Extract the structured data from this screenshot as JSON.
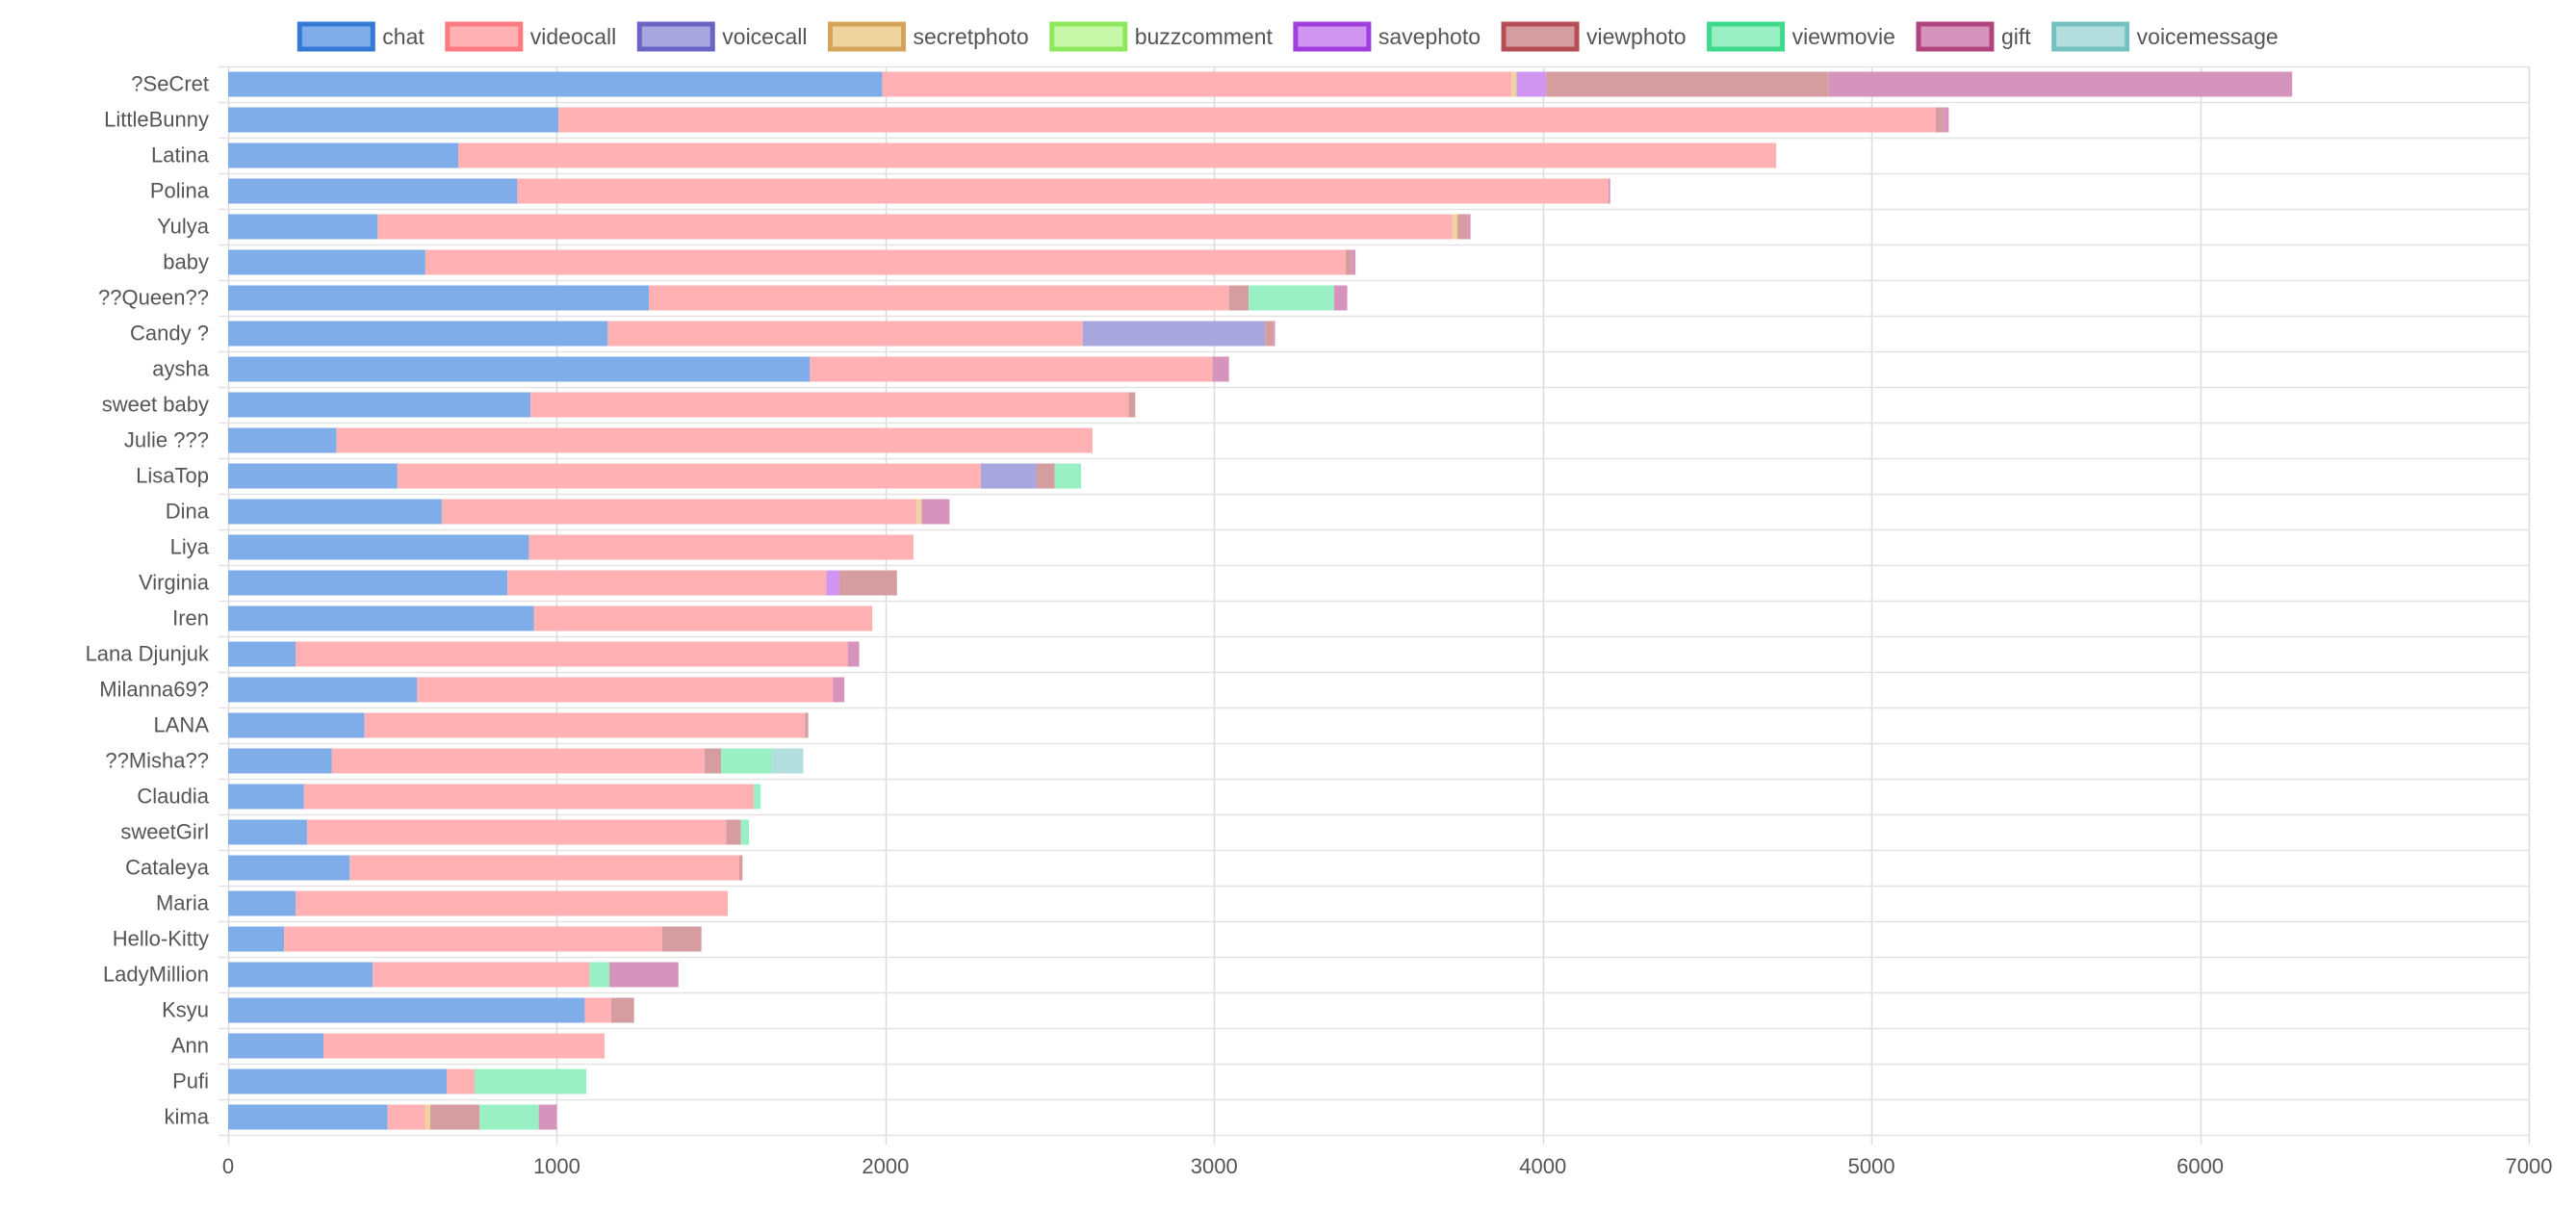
{
  "chart_data": {
    "type": "bar",
    "orientation": "horizontal",
    "stacked": true,
    "title": "",
    "xlabel": "",
    "ylabel": "",
    "xlim": [
      0,
      7000
    ],
    "x_ticks": [
      0,
      1000,
      2000,
      3000,
      4000,
      5000,
      6000,
      7000
    ],
    "grid": true,
    "legend_position": "top",
    "categories": [
      "?SeCret",
      "LittleBunny",
      "Latina",
      "Polina",
      "Yulya",
      "baby",
      "??Queen??",
      "Candy ?",
      "aysha",
      "sweet baby",
      "Julie ???",
      "LisaTop",
      "Dina",
      "Liya",
      "Virginia",
      "Iren",
      "Lana Djunjuk",
      "Milanna69?",
      "LANA",
      "??Misha??",
      "Claudia",
      "sweetGirl",
      "Cataleya",
      "Maria",
      "Hello-Kitty",
      "LadyMillion",
      "Ksyu",
      "Ann",
      "Pufi",
      "kima"
    ],
    "series": [
      {
        "name": "chat",
        "color": "#7fadea",
        "border": "#3579d6",
        "values": [
          1990,
          1005,
          700,
          880,
          455,
          600,
          1280,
          1155,
          1770,
          920,
          330,
          515,
          650,
          915,
          850,
          930,
          205,
          575,
          415,
          315,
          230,
          240,
          370,
          205,
          170,
          440,
          1085,
          290,
          665,
          485
        ]
      },
      {
        "name": "videocall",
        "color": "#ffb1b3",
        "border": "#ff7a80",
        "values": [
          1915,
          4190,
          4010,
          3320,
          3270,
          2800,
          1765,
          1445,
          1225,
          1820,
          2300,
          1775,
          1445,
          1170,
          970,
          1030,
          1680,
          1265,
          1340,
          1135,
          1370,
          1275,
          1185,
          1315,
          1150,
          660,
          80,
          855,
          85,
          115
        ]
      },
      {
        "name": "voicecall",
        "color": "#a7a6dd",
        "border": "#6a64c4",
        "values": [
          0,
          0,
          0,
          0,
          0,
          0,
          0,
          555,
          0,
          0,
          0,
          170,
          0,
          0,
          0,
          0,
          0,
          0,
          0,
          0,
          0,
          0,
          0,
          0,
          0,
          0,
          0,
          0,
          0,
          0
        ]
      },
      {
        "name": "secretphoto",
        "color": "#f0d49e",
        "border": "#d4a45a",
        "values": [
          15,
          0,
          0,
          0,
          15,
          0,
          0,
          0,
          0,
          0,
          0,
          0,
          15,
          0,
          0,
          0,
          0,
          0,
          0,
          0,
          0,
          0,
          0,
          0,
          0,
          0,
          0,
          0,
          0,
          15
        ]
      },
      {
        "name": "buzzcomment",
        "color": "#c9f7a9",
        "border": "#8ee85e",
        "values": [
          0,
          0,
          0,
          0,
          0,
          0,
          0,
          0,
          0,
          0,
          0,
          0,
          0,
          0,
          0,
          0,
          0,
          0,
          0,
          0,
          0,
          0,
          0,
          0,
          0,
          0,
          0,
          0,
          0,
          0
        ]
      },
      {
        "name": "savephoto",
        "color": "#cf95f0",
        "border": "#9f3fde",
        "values": [
          90,
          0,
          0,
          0,
          0,
          0,
          0,
          0,
          0,
          0,
          0,
          0,
          0,
          0,
          40,
          0,
          0,
          0,
          0,
          0,
          0,
          0,
          0,
          0,
          0,
          0,
          0,
          0,
          0,
          0
        ]
      },
      {
        "name": "viewphoto",
        "color": "#d59da0",
        "border": "#b34e55",
        "values": [
          860,
          25,
          0,
          0,
          30,
          20,
          60,
          25,
          0,
          20,
          0,
          55,
          0,
          0,
          175,
          0,
          0,
          0,
          10,
          50,
          0,
          45,
          10,
          0,
          120,
          0,
          70,
          0,
          0,
          150
        ]
      },
      {
        "name": "viewmovie",
        "color": "#99f0c4",
        "border": "#3fd98b",
        "values": [
          0,
          0,
          0,
          0,
          0,
          0,
          260,
          0,
          0,
          0,
          0,
          80,
          0,
          0,
          0,
          0,
          0,
          0,
          0,
          155,
          20,
          25,
          0,
          0,
          0,
          60,
          0,
          0,
          340,
          180
        ]
      },
      {
        "name": "gift",
        "color": "#d694bc",
        "border": "#b0447e",
        "values": [
          1410,
          15,
          0,
          5,
          10,
          10,
          40,
          5,
          50,
          0,
          0,
          0,
          85,
          0,
          0,
          0,
          35,
          35,
          0,
          0,
          0,
          0,
          0,
          0,
          0,
          210,
          0,
          0,
          0,
          55
        ]
      },
      {
        "name": "voicemessage",
        "color": "#b3dede",
        "border": "#75c1c1",
        "values": [
          0,
          0,
          0,
          0,
          0,
          0,
          0,
          0,
          0,
          0,
          0,
          0,
          0,
          0,
          0,
          0,
          0,
          0,
          0,
          95,
          0,
          0,
          0,
          0,
          0,
          0,
          0,
          0,
          0,
          0
        ]
      }
    ]
  }
}
